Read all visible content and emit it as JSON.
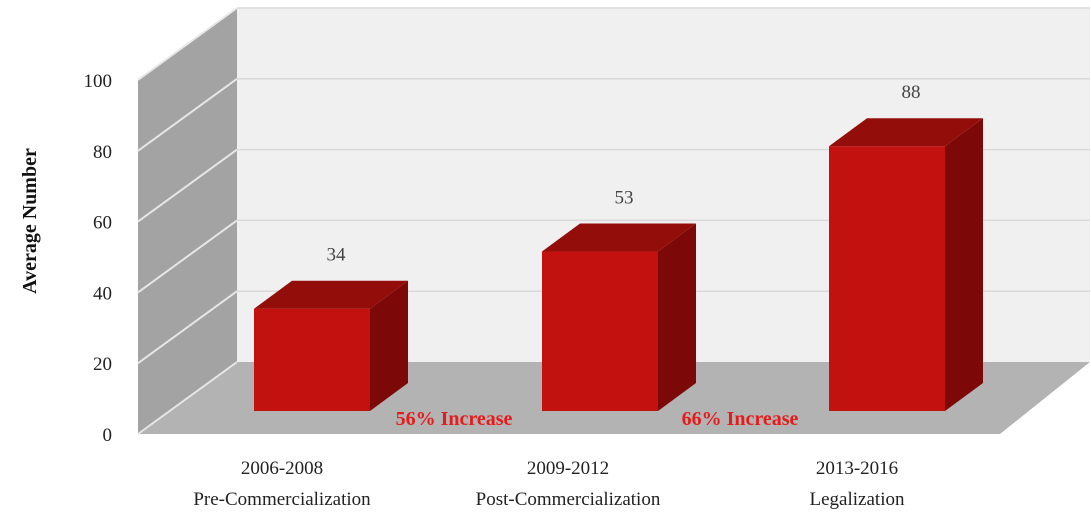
{
  "chart_data": {
    "type": "bar",
    "ylabel": "Average Number",
    "xlabel": "",
    "title": "",
    "ylim": [
      0,
      100
    ],
    "yticks": [
      0,
      20,
      40,
      60,
      80,
      100
    ],
    "categories": [
      {
        "period": "2006-2008",
        "label": "Pre-Commercialization"
      },
      {
        "period": "2009-2012",
        "label": "Post-Commercialization"
      },
      {
        "period": "2013-2016",
        "label": "Legalization"
      }
    ],
    "values": [
      34,
      53,
      88
    ],
    "annotations": [
      "56% Increase",
      "66% Increase"
    ],
    "style": "3d",
    "grid": true,
    "legend": "none",
    "colors": {
      "bar_front": "#c2110f",
      "bar_top": "#930d0b",
      "bar_side": "#7c0807",
      "annotation": "#e41c1c",
      "back_wall": "#f0f0f0",
      "side_wall": "#a3a3a3",
      "floor": "#b3b3b3"
    }
  }
}
